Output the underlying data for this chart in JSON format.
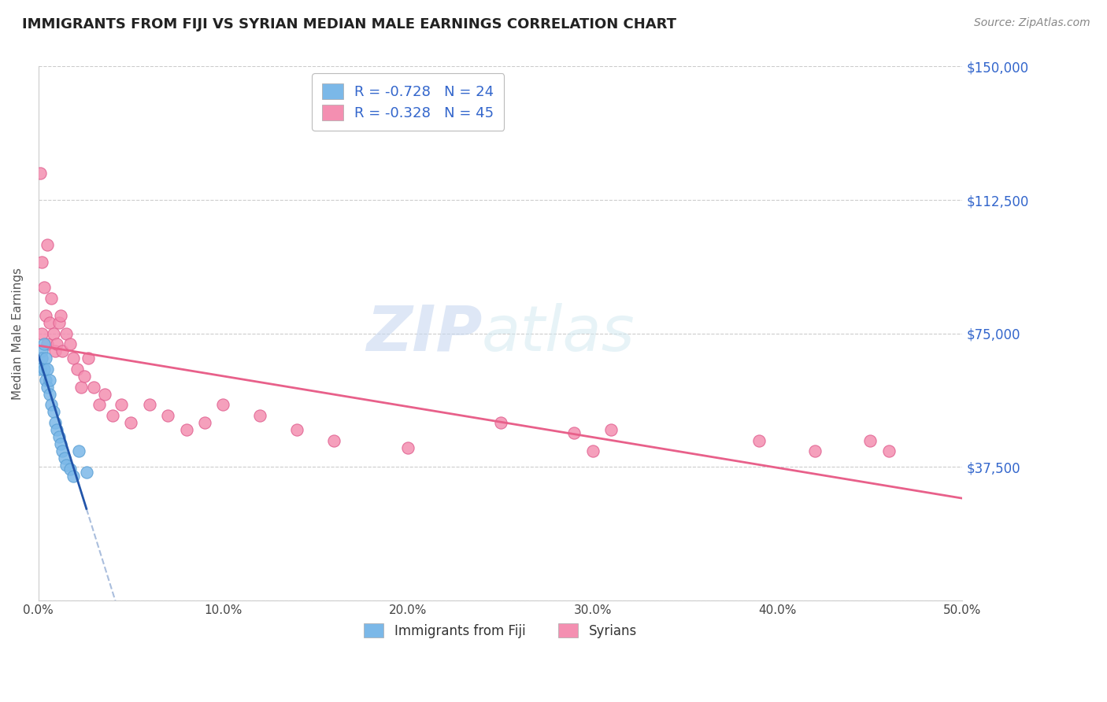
{
  "title": "IMMIGRANTS FROM FIJI VS SYRIAN MEDIAN MALE EARNINGS CORRELATION CHART",
  "source": "Source: ZipAtlas.com",
  "ylabel": "Median Male Earnings",
  "xlim": [
    0.0,
    0.5
  ],
  "ylim": [
    0,
    150000
  ],
  "yticks": [
    0,
    37500,
    75000,
    112500,
    150000
  ],
  "ytick_labels": [
    "",
    "$37,500",
    "$75,000",
    "$112,500",
    "$150,000"
  ],
  "xticks": [
    0.0,
    0.1,
    0.2,
    0.3,
    0.4,
    0.5
  ],
  "xtick_labels": [
    "0.0%",
    "10.0%",
    "20.0%",
    "30.0%",
    "40.0%",
    "50.0%"
  ],
  "fiji_color": "#7BB8E8",
  "fiji_edge": "#5A9FD4",
  "syrian_color": "#F48FB1",
  "syrian_edge": "#E06090",
  "fiji_line_color": "#2255AA",
  "syrian_line_color": "#E8608A",
  "fiji_dash_color": "#AABEDD",
  "fiji_label": "Immigrants from Fiji",
  "syrian_label": "Syrians",
  "fiji_R": -0.728,
  "fiji_N": 24,
  "syrian_R": -0.328,
  "syrian_N": 45,
  "legend_R_color": "#3366CC",
  "watermark_zip": "ZIP",
  "watermark_atlas": "atlas",
  "background_color": "#FFFFFF",
  "grid_color": "#CCCCCC",
  "fiji_scatter_x": [
    0.001,
    0.002,
    0.002,
    0.003,
    0.003,
    0.004,
    0.004,
    0.005,
    0.005,
    0.006,
    0.006,
    0.007,
    0.008,
    0.009,
    0.01,
    0.011,
    0.012,
    0.013,
    0.014,
    0.015,
    0.017,
    0.019,
    0.022,
    0.026
  ],
  "fiji_scatter_y": [
    65000,
    70000,
    68000,
    72000,
    65000,
    68000,
    62000,
    60000,
    65000,
    58000,
    62000,
    55000,
    53000,
    50000,
    48000,
    46000,
    44000,
    42000,
    40000,
    38000,
    37000,
    35000,
    42000,
    36000
  ],
  "syrian_scatter_x": [
    0.001,
    0.002,
    0.002,
    0.003,
    0.004,
    0.005,
    0.005,
    0.006,
    0.007,
    0.008,
    0.009,
    0.01,
    0.011,
    0.012,
    0.013,
    0.015,
    0.017,
    0.019,
    0.021,
    0.023,
    0.025,
    0.027,
    0.03,
    0.033,
    0.036,
    0.04,
    0.045,
    0.05,
    0.06,
    0.07,
    0.08,
    0.09,
    0.1,
    0.12,
    0.14,
    0.16,
    0.2,
    0.25,
    0.29,
    0.3,
    0.31,
    0.39,
    0.42,
    0.45,
    0.46
  ],
  "syrian_scatter_y": [
    120000,
    95000,
    75000,
    88000,
    80000,
    100000,
    72000,
    78000,
    85000,
    75000,
    70000,
    72000,
    78000,
    80000,
    70000,
    75000,
    72000,
    68000,
    65000,
    60000,
    63000,
    68000,
    60000,
    55000,
    58000,
    52000,
    55000,
    50000,
    55000,
    52000,
    48000,
    50000,
    55000,
    52000,
    48000,
    45000,
    43000,
    50000,
    47000,
    42000,
    48000,
    45000,
    42000,
    45000,
    42000
  ]
}
